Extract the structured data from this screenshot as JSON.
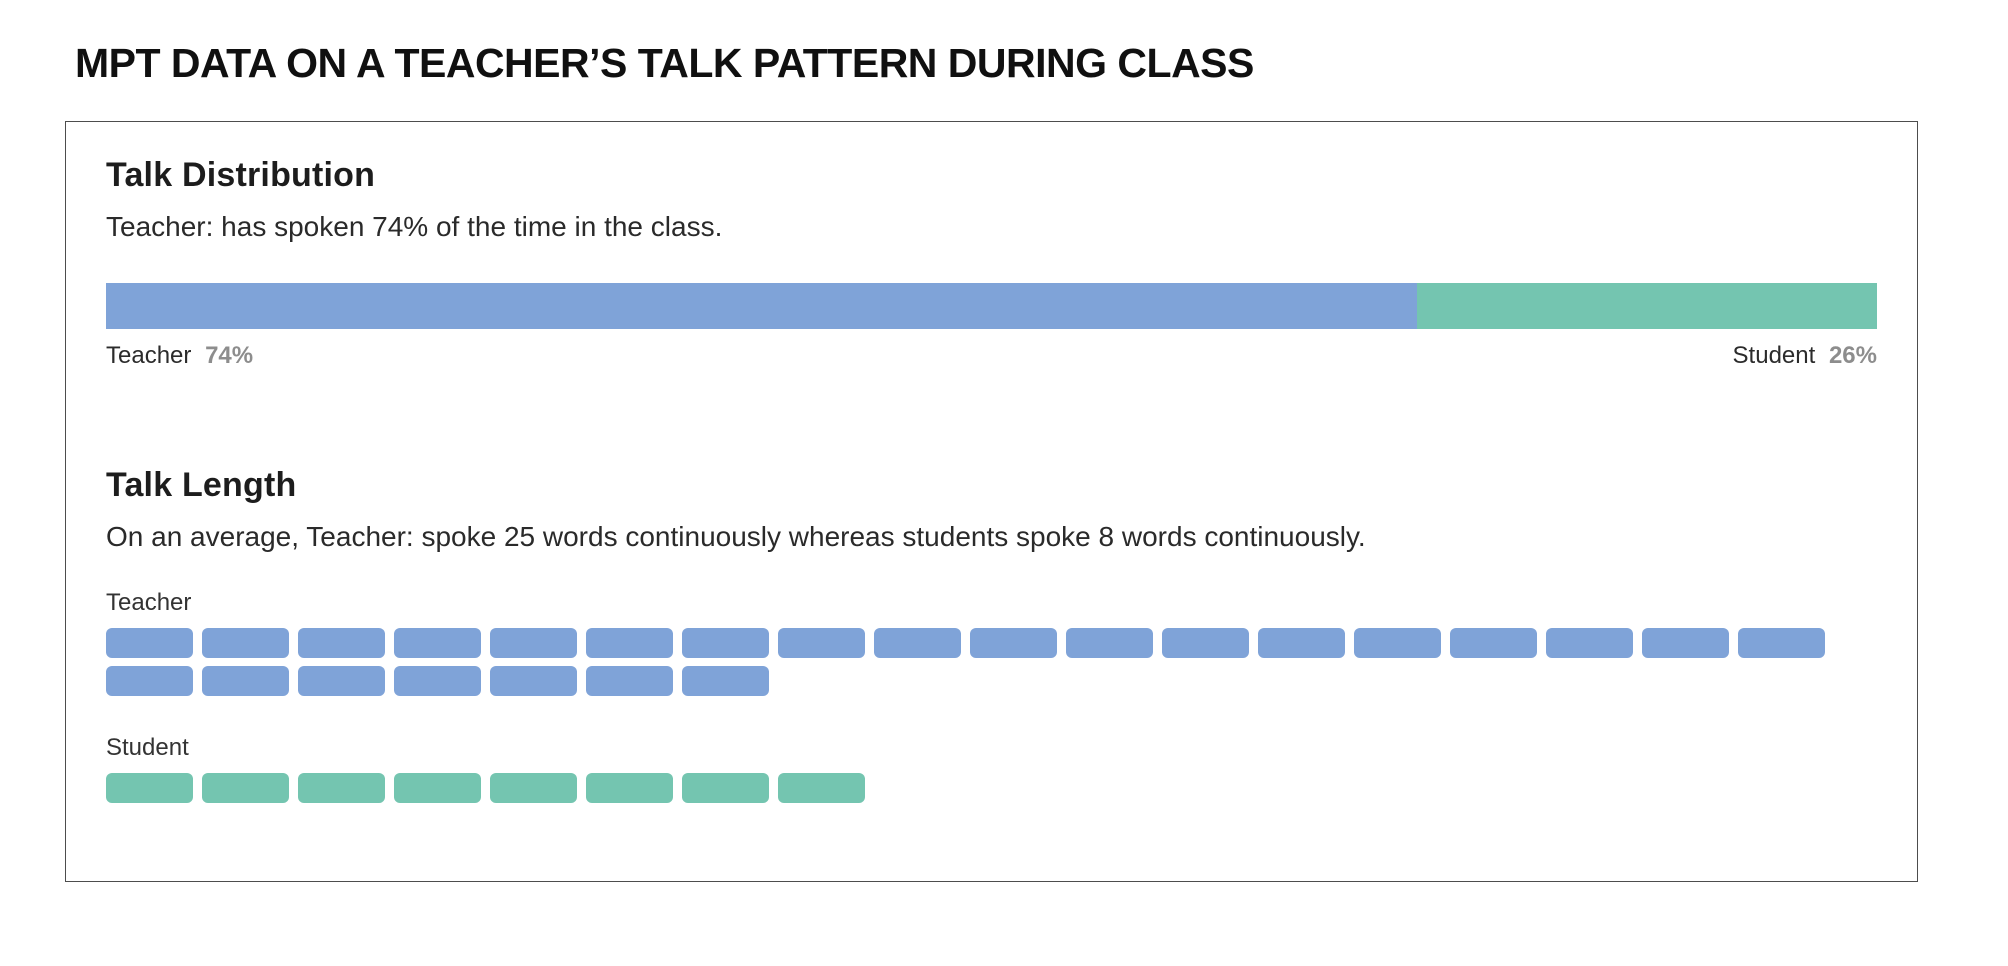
{
  "page": {
    "title": "MPT DATA ON A TEACHER’S TALK PATTERN DURING CLASS"
  },
  "colors": {
    "teacher_blue": "#7FA3D8",
    "student_teal": "#74C5B0",
    "pct_gray": "#8D8D8D"
  },
  "talk_distribution": {
    "heading": "Talk Distribution",
    "description": "Teacher: has spoken 74% of the time in the class.",
    "teacher_label": "Teacher",
    "teacher_pct": 74,
    "teacher_pct_label": "74%",
    "student_label": "Student",
    "student_pct": 26,
    "student_pct_label": "26%"
  },
  "talk_length": {
    "heading": "Talk Length",
    "description": "On an average, Teacher: spoke 25 words continuously whereas students spoke 8 words continuously.",
    "groups": [
      {
        "label": "Teacher",
        "words": 25,
        "color_key": "teacher"
      },
      {
        "label": "Student",
        "words": 8,
        "color_key": "student"
      }
    ]
  },
  "chart_data": [
    {
      "type": "bar",
      "subtype": "stacked-horizontal",
      "title": "Talk Distribution",
      "categories": [
        "Teacher",
        "Student"
      ],
      "values": [
        74,
        26
      ],
      "unit": "% of class talk time",
      "colors": [
        "#7FA3D8",
        "#74C5B0"
      ],
      "xlim": [
        0,
        100
      ],
      "legend_position": "below-bar-ends",
      "grid": false
    },
    {
      "type": "bar",
      "subtype": "unit-blocks",
      "title": "Talk Length",
      "categories": [
        "Teacher",
        "Student"
      ],
      "values": [
        25,
        8
      ],
      "unit": "average words spoken continuously",
      "colors": [
        "#7FA3D8",
        "#74C5B0"
      ],
      "blocks_per_row_max": 18,
      "grid": false
    }
  ]
}
